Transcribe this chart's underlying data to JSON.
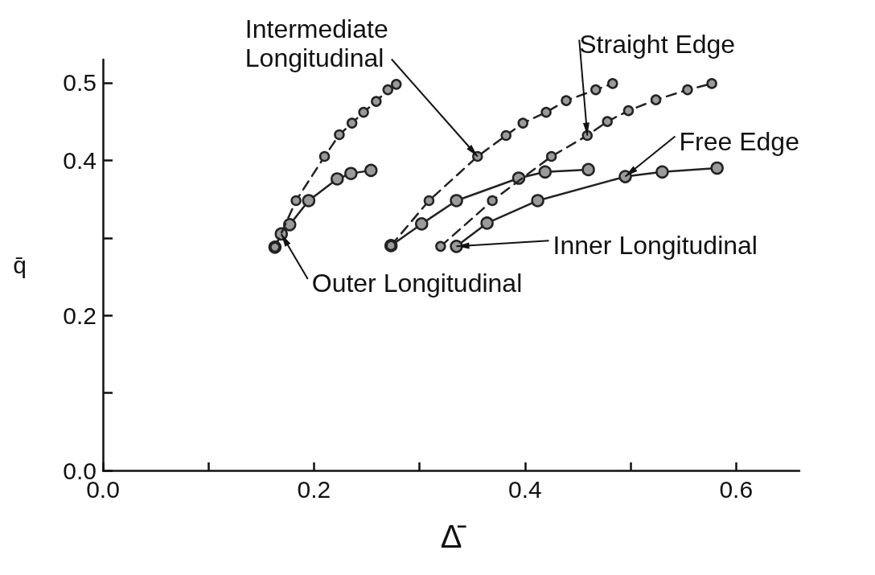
{
  "chart_data": {
    "type": "line",
    "xlabel": "Δ̄",
    "ylabel": "q̄",
    "xlim": [
      0,
      0.66
    ],
    "xticks": [
      {
        "value": 0,
        "label": "0.0"
      },
      {
        "value": 0.1,
        "label": null
      },
      0.2,
      {
        "value": 0.3,
        "label": null
      },
      0.4,
      {
        "value": 0.5,
        "label": null
      },
      0.6
    ],
    "ylim": [
      0,
      0.53
    ],
    "yticks": [
      {
        "value": 0,
        "label": "0.0"
      },
      {
        "value": 0.1,
        "label": null
      },
      0.2,
      {
        "value": 0.3,
        "label": null
      },
      0.4,
      0.5
    ],
    "marker": "circle",
    "series": [
      {
        "color": "#222222",
        "line_style": "dashed",
        "x": [
          0.163,
          0.183,
          0.21,
          0.224,
          0.236,
          0.247,
          0.259,
          0.27,
          0.278
        ],
        "values": [
          0.288,
          0.348,
          0.405,
          0.433,
          0.448,
          0.462,
          0.476,
          0.491,
          0.498
        ]
      },
      {
        "color": "#222222",
        "line_style": "solid",
        "x": [
          0.163,
          0.169,
          0.177,
          0.195,
          0.222,
          0.235,
          0.254
        ],
        "values": [
          0.288,
          0.305,
          0.317,
          0.348,
          0.376,
          0.383,
          0.387
        ]
      },
      {
        "color": "#222222",
        "line_style": "dashed",
        "x": [
          0.273,
          0.309,
          0.355,
          0.382,
          0.398,
          0.42,
          0.439,
          0.467,
          0.483
        ],
        "values": [
          0.29,
          0.348,
          0.405,
          0.432,
          0.448,
          0.462,
          0.477,
          0.491,
          0.499
        ]
      },
      {
        "color": "#222222",
        "line_style": "solid",
        "x": [
          0.273,
          0.302,
          0.335,
          0.394,
          0.419,
          0.46
        ],
        "values": [
          0.29,
          0.318,
          0.348,
          0.377,
          0.385,
          0.388
        ]
      },
      {
        "color": "#222222",
        "line_style": "dashed",
        "x": [
          0.32,
          0.369,
          0.425,
          0.459,
          0.478,
          0.498,
          0.524,
          0.554,
          0.577
        ],
        "values": [
          0.289,
          0.348,
          0.405,
          0.432,
          0.45,
          0.464,
          0.478,
          0.491,
          0.499
        ]
      },
      {
        "color": "#222222",
        "line_style": "solid",
        "x": [
          0.335,
          0.364,
          0.412,
          0.495,
          0.53,
          0.582
        ],
        "values": [
          0.289,
          0.319,
          0.348,
          0.379,
          0.385,
          0.39
        ]
      }
    ],
    "annotations": [
      {
        "text": "Intermediate Longitudinal",
        "x": 0.355,
        "y": 0.405
      },
      {
        "text": "Straight Edge",
        "x": 0.459,
        "y": 0.432
      },
      {
        "text": "Free Edge",
        "x": 0.495,
        "y": 0.379
      },
      {
        "text": "Inner Longitudinal",
        "x": 0.335,
        "y": 0.289
      },
      {
        "text": "Outer Longitudinal",
        "x": 0.169,
        "y": 0.305
      }
    ]
  }
}
